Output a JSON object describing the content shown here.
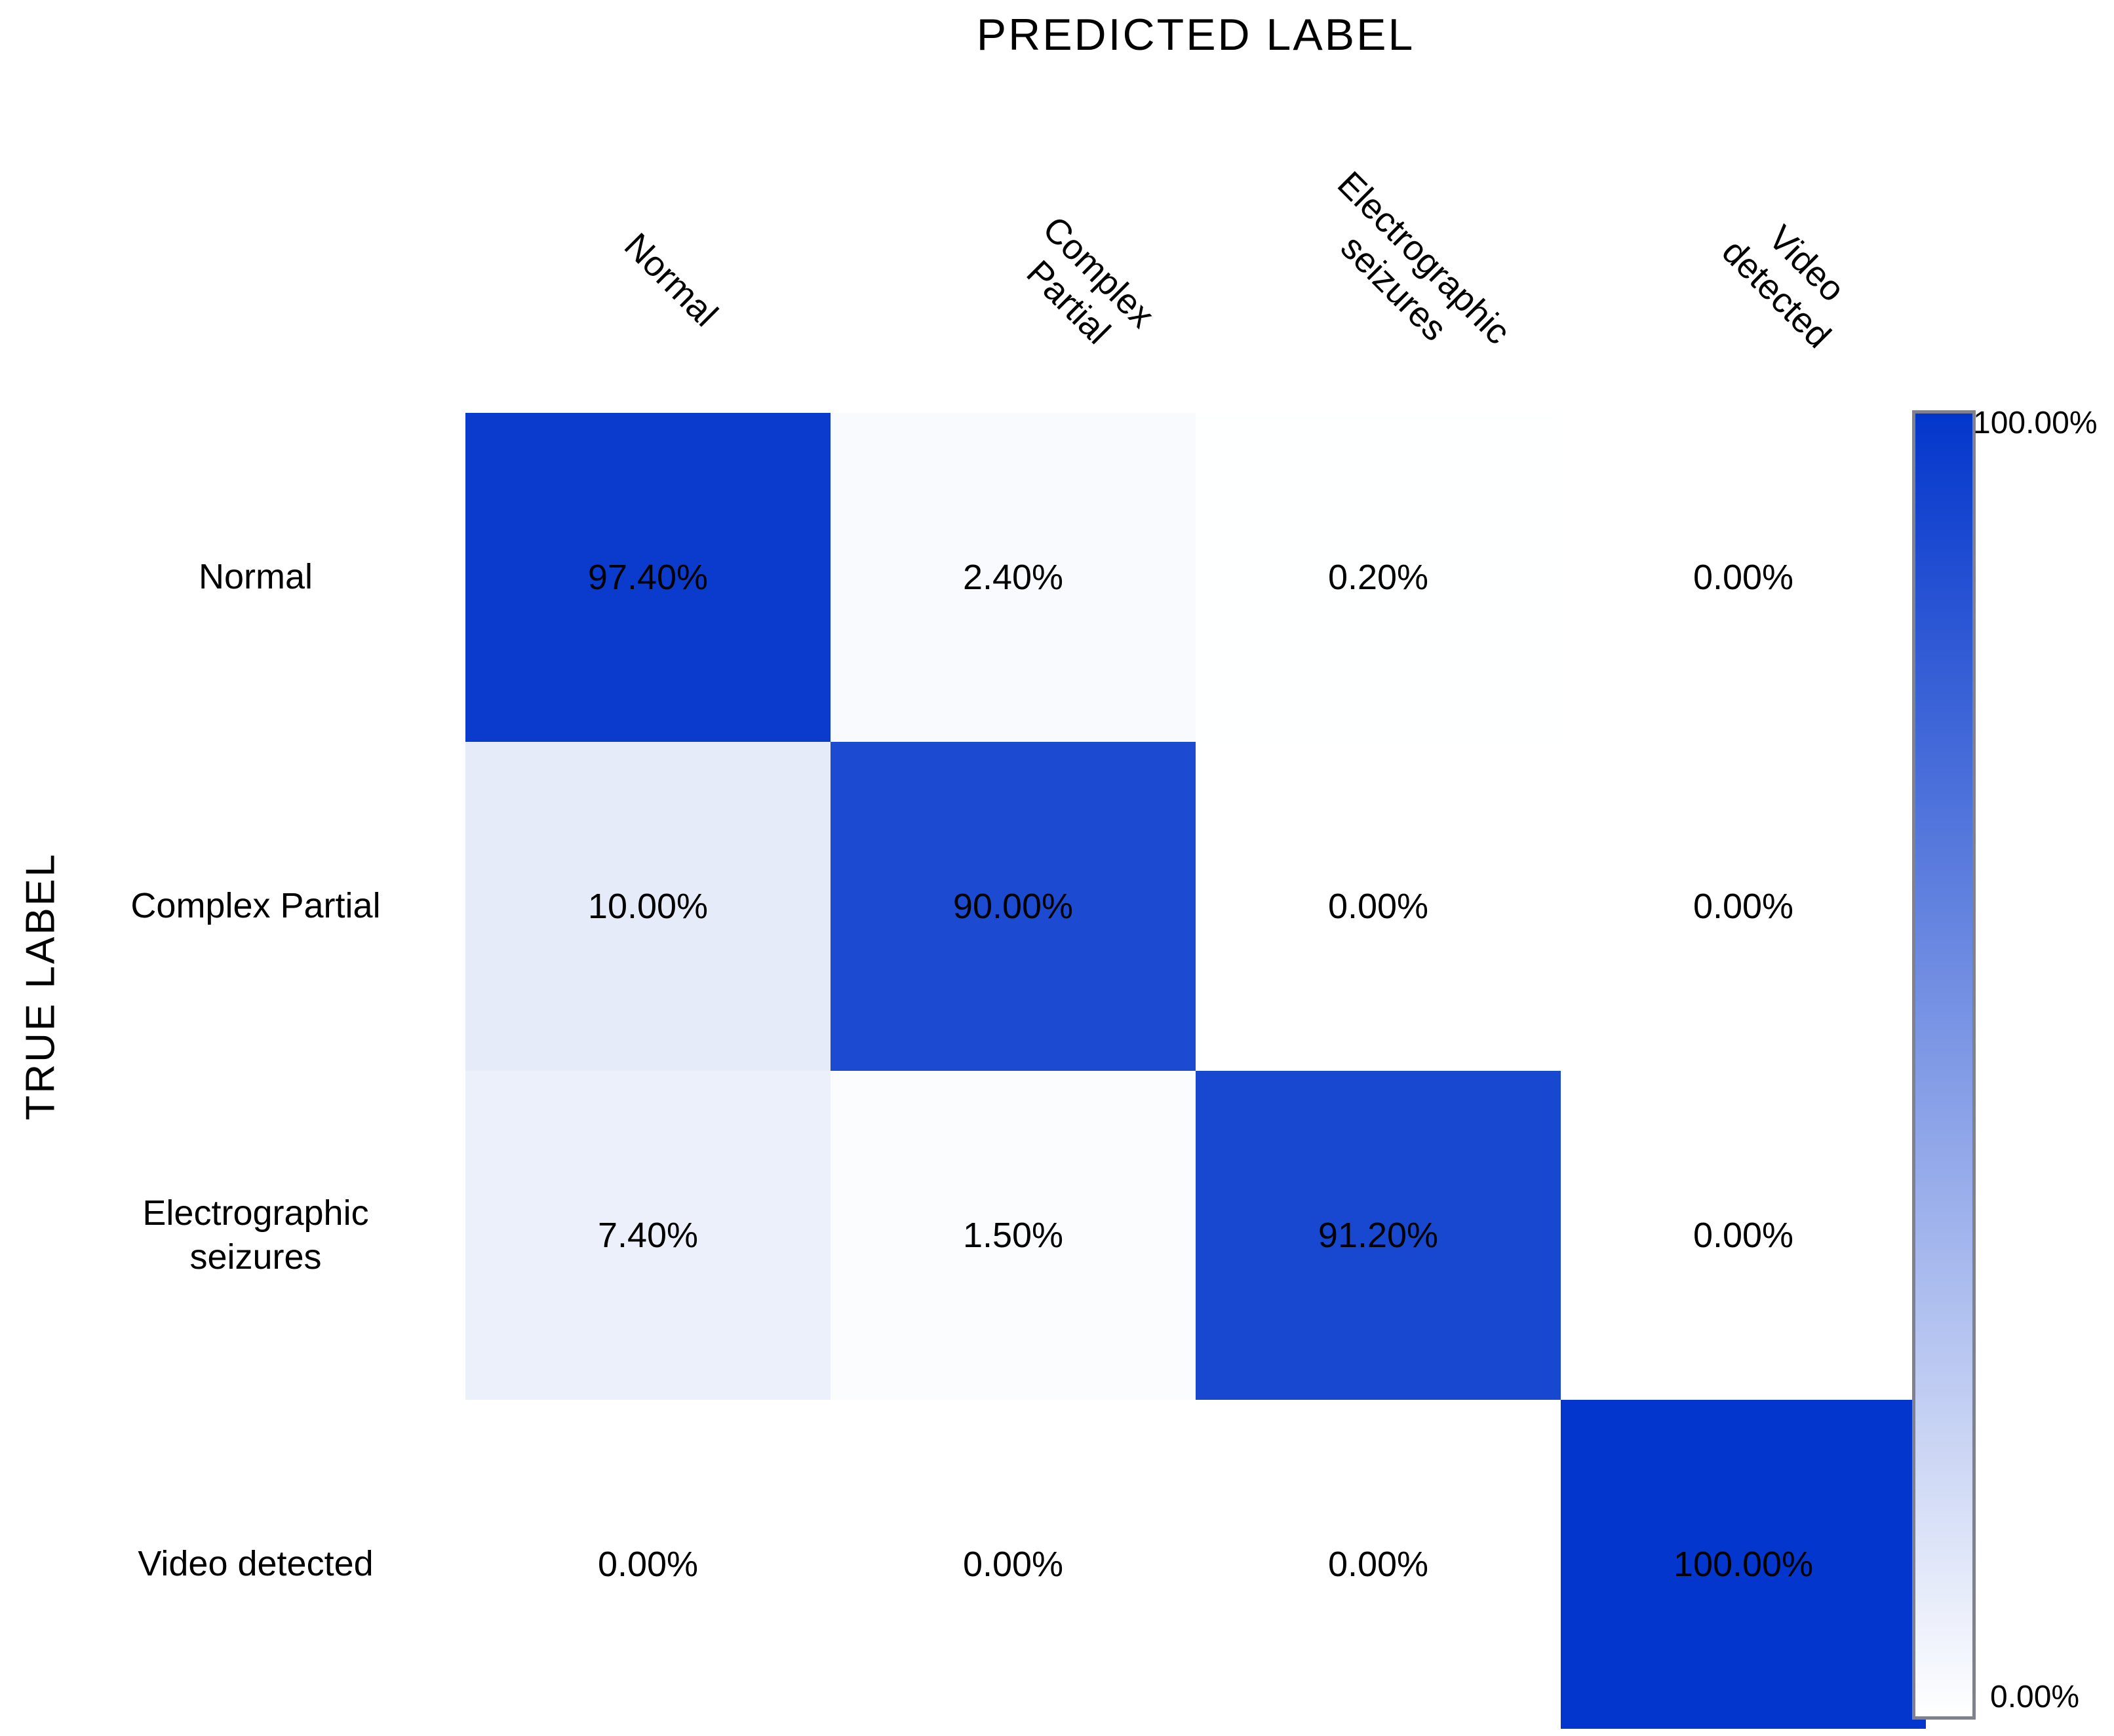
{
  "chart_data": {
    "type": "heatmap",
    "title": "PREDICTED LABEL",
    "xlabel": "PREDICTED LABEL",
    "ylabel": "TRUE LABEL",
    "col_labels": [
      "Normal",
      "Complex Partial",
      "Electrographic\nseizures",
      "Video detected"
    ],
    "row_labels": [
      "Normal",
      "Complex Partial",
      "Electrographic\nseizures",
      "Video detected"
    ],
    "values": [
      [
        97.4,
        2.4,
        0.2,
        0.0
      ],
      [
        10.0,
        90.0,
        0.0,
        0.0
      ],
      [
        7.4,
        1.5,
        91.2,
        0.0
      ],
      [
        0.0,
        0.0,
        0.0,
        100.0
      ]
    ],
    "cell_labels": [
      [
        "97.40%",
        "2.40%",
        "0.20%",
        "0.00%"
      ],
      [
        "10.00%",
        "90.00%",
        "0.00%",
        "0.00%"
      ],
      [
        "7.40%",
        "1.50%",
        "91.20%",
        "0.00%"
      ],
      [
        "0.00%",
        "0.00%",
        "0.00%",
        "100.00%"
      ]
    ],
    "value_range": [
      0,
      100
    ],
    "grid": false,
    "legend_position": "right-colorbar",
    "colormap": {
      "low": "#FFFFFF",
      "high": "#0336CC"
    },
    "colorbar": {
      "top_label": "100.00%",
      "bottom_label": "0.00%",
      "border_color": "#7F828C"
    }
  }
}
